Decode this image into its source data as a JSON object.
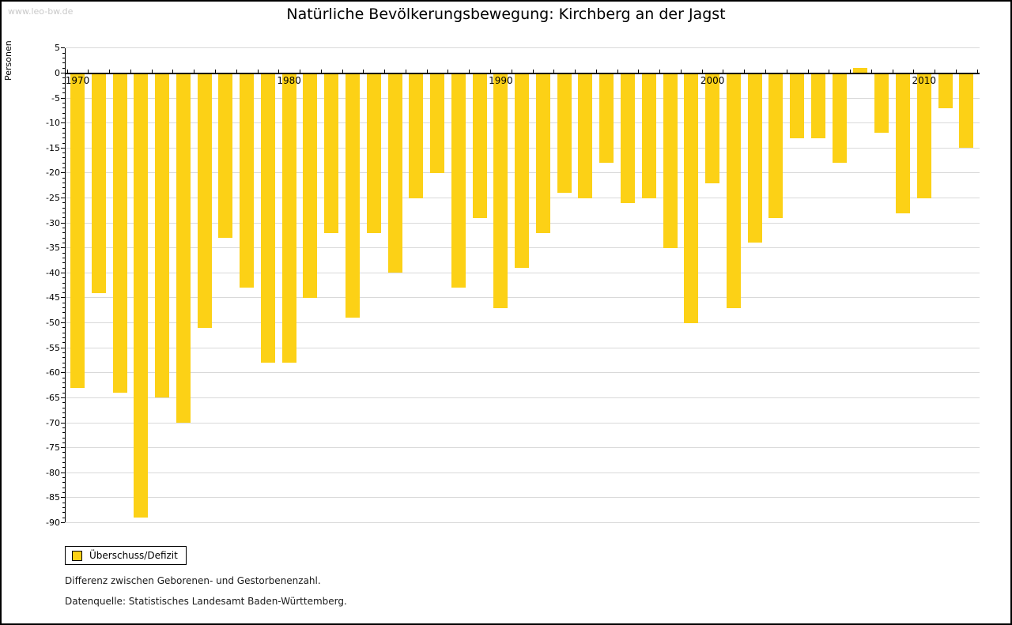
{
  "watermark": "www.leo-bw.de",
  "header": {
    "title": "Natürliche Bevölkerungsbewegung: Kirchberg an der Jagst"
  },
  "legend": {
    "label": "Überschuss/Defizit"
  },
  "footnotes": {
    "line1": "Differenz zwischen Geborenen- und Gestorbenenzahl.",
    "line2": "Datenquelle: Statistisches Landesamt Baden-Württemberg."
  },
  "colors": {
    "bar": "#fcd116",
    "gridline": "#d9d9d9",
    "axis": "#000000",
    "watermark": "#c9c9c9"
  },
  "chart_data": {
    "type": "bar",
    "title": "Natürliche Bevölkerungsbewegung: Kirchberg an der Jagst",
    "xlabel": "",
    "ylabel": "Personen",
    "ylim": [
      -90,
      5
    ],
    "ytick_step": 5,
    "yticks": [
      5,
      0,
      -5,
      -10,
      -15,
      -20,
      -25,
      -30,
      -35,
      -40,
      -45,
      -50,
      -55,
      -60,
      -65,
      -70,
      -75,
      -80,
      -85,
      -90
    ],
    "xtick_labels": [
      "1970",
      "1980",
      "1990",
      "2000",
      "2010"
    ],
    "grid": true,
    "legend_position": "bottom-left",
    "series_name": "Überschuss/Defizit",
    "x": [
      1970,
      1971,
      1972,
      1973,
      1974,
      1975,
      1976,
      1977,
      1978,
      1979,
      1980,
      1981,
      1982,
      1983,
      1984,
      1985,
      1986,
      1987,
      1988,
      1989,
      1990,
      1991,
      1992,
      1993,
      1994,
      1995,
      1996,
      1997,
      1998,
      1999,
      2000,
      2001,
      2002,
      2003,
      2004,
      2005,
      2006,
      2007,
      2008,
      2009,
      2010,
      2011,
      2012
    ],
    "values": [
      -63,
      -44,
      -64,
      -89,
      -65,
      -70,
      -51,
      -33,
      -43,
      -58,
      -58,
      -45,
      -32,
      -49,
      -32,
      -40,
      -25,
      -20,
      -43,
      -29,
      -47,
      -39,
      -32,
      -24,
      -25,
      -18,
      -26,
      -25,
      -35,
      -50,
      -22,
      -47,
      -34,
      -29,
      -13,
      -13,
      -18,
      1,
      -12,
      -28,
      -25,
      -7,
      -15
    ]
  }
}
